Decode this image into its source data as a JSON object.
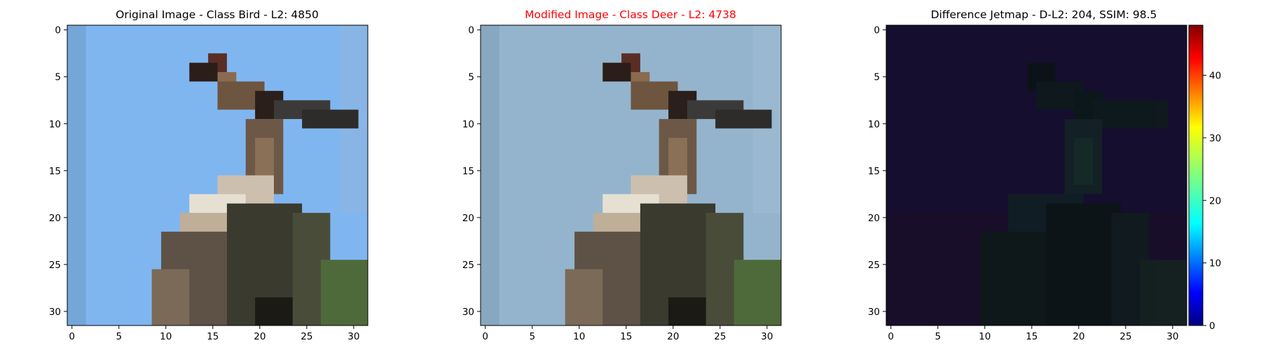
{
  "chart_data": [
    {
      "type": "image",
      "title": "Original Image - Class Bird - L2: 4850",
      "title_color": "#000000",
      "image_size": [
        32,
        32
      ],
      "x_ticks": [
        "0",
        "5",
        "10",
        "15",
        "20",
        "25",
        "30"
      ],
      "y_ticks": [
        "0",
        "5",
        "10",
        "15",
        "20",
        "25",
        "30"
      ],
      "xlim": [
        -0.5,
        31.5
      ],
      "ylim": [
        31.5,
        -0.5
      ],
      "content": "pixelated photo of a bird (heron) against a light blue sky",
      "palette": {
        "background": "#80b6ef",
        "body": "#6b5a48",
        "belly": "#ddd6c8",
        "foliage": "#4f6a3a"
      }
    },
    {
      "type": "image",
      "title": "Modified Image - Class Deer - L2: 4738",
      "title_color": "#ff0000",
      "image_size": [
        32,
        32
      ],
      "x_ticks": [
        "0",
        "5",
        "10",
        "15",
        "20",
        "25",
        "30"
      ],
      "y_ticks": [
        "0",
        "5",
        "10",
        "15",
        "20",
        "25",
        "30"
      ],
      "xlim": [
        -0.5,
        31.5
      ],
      "ylim": [
        31.5,
        -0.5
      ],
      "content": "same bird photo with a desaturated grey-blue sky",
      "palette": {
        "background": "#94b4cd",
        "body": "#6b5a48",
        "belly": "#ddd6c8",
        "foliage": "#4f6a3a"
      }
    },
    {
      "type": "heatmap",
      "title": "Difference Jetmap - D-L2: 204, SSIM: 98.5",
      "title_color": "#000000",
      "image_size": [
        32,
        32
      ],
      "x_ticks": [
        "0",
        "5",
        "10",
        "15",
        "20",
        "25",
        "30"
      ],
      "y_ticks": [
        "0",
        "5",
        "10",
        "15",
        "20",
        "25",
        "30"
      ],
      "xlim": [
        -0.5,
        31.5
      ],
      "ylim": [
        31.5,
        -0.5
      ],
      "colormap": "jet",
      "colorbar": {
        "min": 0,
        "max": 48,
        "ticks": [
          "0",
          "10",
          "20",
          "30",
          "40"
        ]
      },
      "content": "mostly near-zero differences (dark navy) with a faint greenish bird silhouette",
      "palette": {
        "background": "#150e2e",
        "silhouette": "#0f1a1c"
      }
    }
  ]
}
